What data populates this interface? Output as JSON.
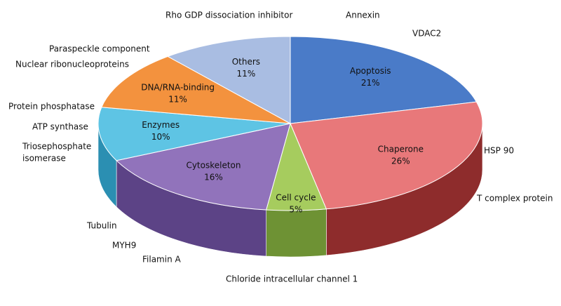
{
  "chart_data": {
    "type": "pie3d",
    "categories": [
      "Apoptosis",
      "Chaperone",
      "Cell cycle",
      "Cytoskeleton",
      "Enzymes",
      "DNA/RNA-binding",
      "Others"
    ],
    "values": [
      21,
      26,
      5,
      16,
      10,
      11,
      11
    ],
    "value_labels": [
      "21%",
      "26%",
      "5%",
      "16%",
      "10%",
      "11%",
      "11%"
    ],
    "colors": [
      "#4a7bc8",
      "#e8787a",
      "#a6cc5e",
      "#9173bb",
      "#5ec4e4",
      "#f3923e",
      "#a9bde2"
    ],
    "side_colors": [
      "#2f5a9c",
      "#8e2c2c",
      "#6e9234",
      "#5c4386",
      "#2b8fb2",
      "#b8601a",
      "#7688b0"
    ],
    "annotations": [
      "Rho GDP dissociation inhibitor",
      "Annexin",
      "VDAC2",
      "Paraspeckle component",
      "Nuclear ribonucleoproteins",
      "Protein phosphatase",
      "ATP synthase",
      "Triosephosphate",
      "isomerase",
      "HSP 90",
      "T complex protein",
      "Tubulin",
      "MYH9",
      "Filamin A",
      "Chloride intracellular channel 1"
    ]
  }
}
